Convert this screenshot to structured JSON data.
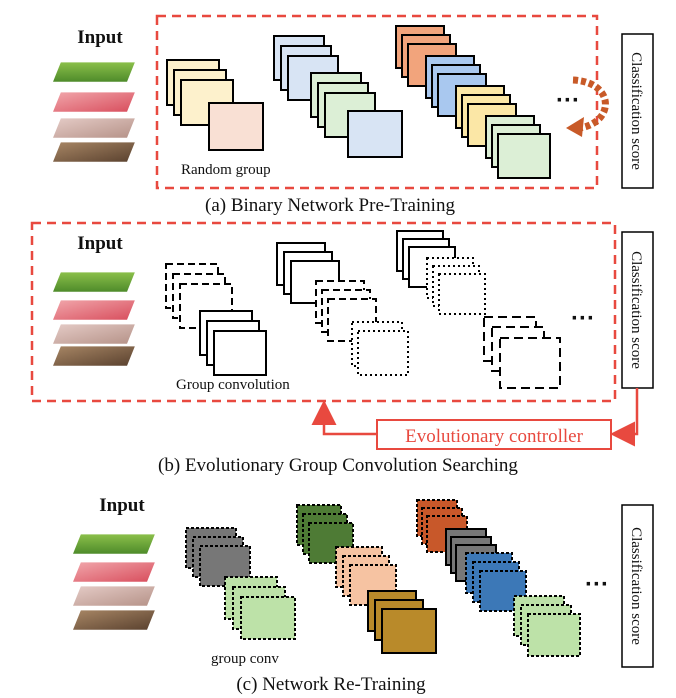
{
  "sections": {
    "a": {
      "input_label": "Input",
      "group_label": "Random group",
      "score_label": "Classification score",
      "caption": "(a) Binary Network Pre-Training",
      "ellipsis": "···"
    },
    "b": {
      "input_label": "Input",
      "group_label": "Group convolution",
      "score_label": "Classification score",
      "controller_label": "Evolutionary controller",
      "caption": "(b) Evolutionary Group Convolution Searching",
      "ellipsis": "···"
    },
    "c": {
      "input_label": "Input",
      "group_label": "group conv",
      "score_label": "Classification score",
      "caption": "(c) Network Re-Training",
      "ellipsis": "···"
    }
  },
  "colors": {
    "dashed_frame": "#e8493f",
    "controller": "#e8493f",
    "arrow_curve": "#c85a28",
    "cream": "#fdf1cc",
    "pink": "#f9e0d4",
    "lightblue": "#d8e4f4",
    "lightgreen": "#dcefd6",
    "orange": "#f2a47c",
    "blue": "#a9c8ef",
    "yellow": "#fbe7a6",
    "grey": "#777777",
    "darkgreen": "#4e7b35",
    "salmon": "#f6c3a2",
    "gold": "#b98a2a",
    "rust": "#c8582a",
    "steelblue": "#3c78b7",
    "palegreen": "#bde2a8"
  }
}
